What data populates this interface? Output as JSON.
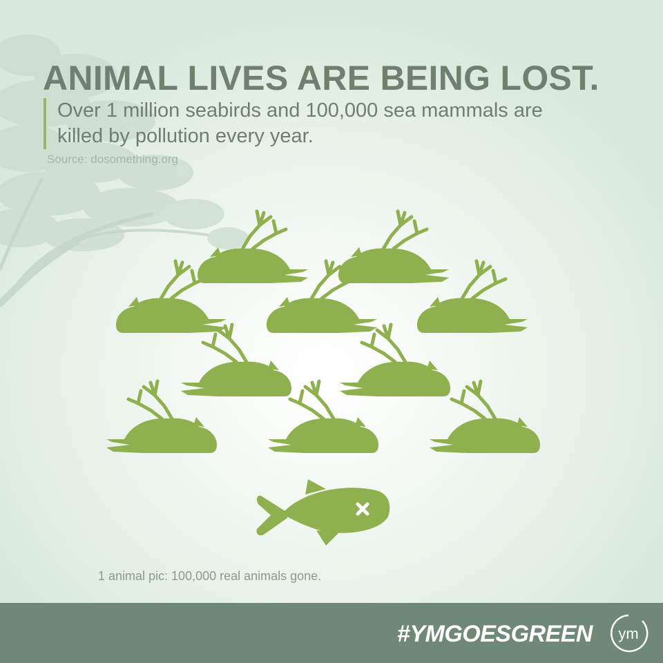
{
  "header": {
    "title": "ANIMAL LIVES ARE BEING LOST.",
    "subtitle_line1": "Over 1 million seabirds and 100,000 sea mammals are",
    "subtitle_line2": "killed by pollution every year.",
    "source": "Source: dosomething.org"
  },
  "caption": "1 animal pic: 100,000 real animals gone.",
  "footer": {
    "hashtag": "#YMGOESGREEN",
    "logo_text": "ym"
  },
  "colors": {
    "accent_green": "#9ab56d",
    "icon_green": "#8fb04f",
    "title_gray_green": "#6f806f",
    "footer_band": "#708878"
  },
  "icons": {
    "bird": "dead-seabird-icon",
    "fish": "dead-fish-icon",
    "tree": "tree-silhouette-icon",
    "logo": "ym-logo-icon"
  },
  "counts": {
    "seabird_icons": 10,
    "fish_icons": 1
  }
}
